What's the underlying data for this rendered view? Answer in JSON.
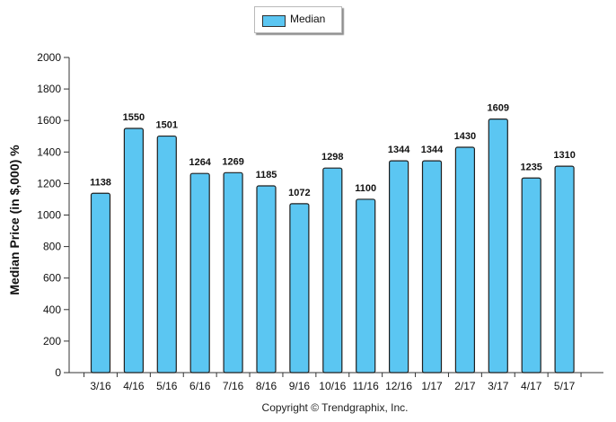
{
  "legend": {
    "label": "Median"
  },
  "footer": {
    "copyright": "Copyright © Trendgraphix, Inc."
  },
  "chart_data": {
    "type": "bar",
    "categories": [
      "3/16",
      "4/16",
      "5/16",
      "6/16",
      "7/16",
      "8/16",
      "9/16",
      "10/16",
      "11/16",
      "12/16",
      "1/17",
      "2/17",
      "3/17",
      "4/17",
      "5/17"
    ],
    "series": [
      {
        "name": "Median",
        "values": [
          1138,
          1550,
          1501,
          1264,
          1269,
          1185,
          1072,
          1298,
          1100,
          1344,
          1344,
          1430,
          1609,
          1235,
          1310
        ]
      }
    ],
    "title": "",
    "xlabel": "",
    "ylabel": "Median Price (in $,000) %",
    "ylim": [
      0,
      2000
    ],
    "yticks": [
      0,
      200,
      400,
      600,
      800,
      1000,
      1200,
      1400,
      1600,
      1800,
      2000
    ],
    "grid": false,
    "legend_position": "top-center",
    "bar_color": "#5bc6f2",
    "bar_edge_color": "#1f1f1f"
  }
}
